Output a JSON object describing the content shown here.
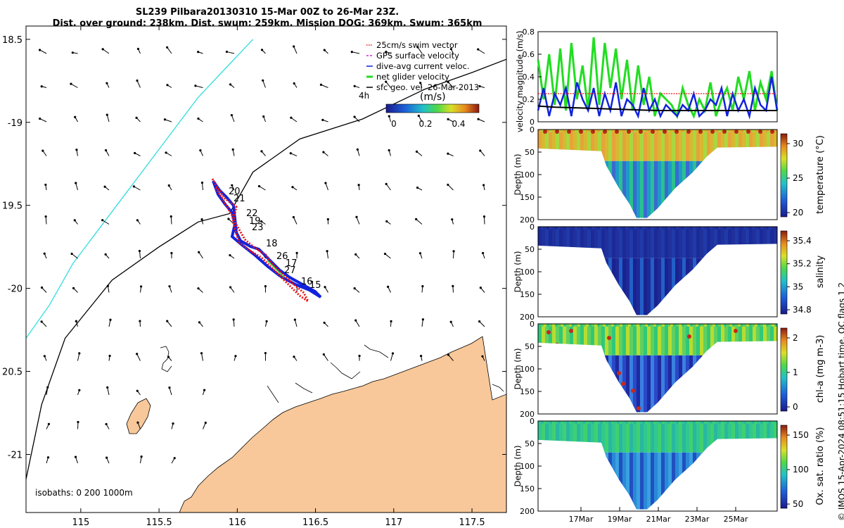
{
  "header": {
    "title_line1": "SL239 Pilbara20130310 15-Mar 00Z to 26-Mar 23Z.",
    "title_line2": "Dist. over ground: 238km. Dist. swum: 259km. Mission DOG: 369km. Swum: 365km"
  },
  "credit": "© IMOS 15-Apr-2024 08:51:15 Hobart time. QC flags 1  2",
  "colors": {
    "coast_cyan": "#33dddd",
    "land": "#f8c89a",
    "track_red": "#ee1111",
    "track_blue": "#1122dd",
    "net_green": "#22dd22",
    "gps_magenta": "#dd22dd"
  },
  "map": {
    "legend": [
      {
        "label": "25cm/s swim vector",
        "color": "#ee1111",
        "style": "dotted"
      },
      {
        "label": "GPS surface velocity",
        "color": "#dd22dd",
        "style": "dashed"
      },
      {
        "label": "dive-avg current veloc.",
        "color": "#1122dd",
        "style": "solid"
      },
      {
        "label": "net glider velocity",
        "color": "#22dd22",
        "style": "thick"
      },
      {
        "label": "sfc geo. vel. 26-Mar-2013",
        "color": "#000000",
        "style": "solid"
      }
    ],
    "interval_label": "4h",
    "colorbar_unit": "(m/s)",
    "colorbar_ticks": [
      "0",
      "0.2",
      "0.4"
    ],
    "isobaths_label": "isobaths: 0   200  1000m",
    "track_day_labels": [
      "20",
      "21",
      "22",
      "19",
      "23",
      "18",
      "26",
      "17",
      "27",
      "15",
      "16"
    ]
  },
  "chart_data": [
    {
      "type": "scatter",
      "title": "SL239 Pilbara20130310 15-Mar 00Z to 26-Mar 23Z.",
      "xlabel": "",
      "ylabel": "",
      "xlim": [
        114.65,
        117.72
      ],
      "ylim": [
        -21.35,
        -18.42
      ],
      "xticks": [
        115,
        115.5,
        116,
        116.5,
        117,
        117.5
      ],
      "xtick_labels": [
        "115",
        "115.5",
        "116",
        "116.5",
        "117",
        "117.5"
      ],
      "yticks": [
        -18.5,
        -19,
        -19.5,
        -20,
        -20.5,
        -21
      ],
      "ytick_labels": [
        "18.5",
        "-19",
        "19.5",
        "-20",
        "20.5",
        "-21"
      ],
      "glider_track": {
        "x": [
          115.87,
          115.95,
          116.0,
          116.05,
          116.12,
          116.2,
          116.28,
          116.35,
          116.42,
          116.52
        ],
        "y": [
          -19.37,
          -19.46,
          -19.55,
          -19.66,
          -19.76,
          -19.83,
          -19.9,
          -19.96,
          -20.03,
          -20.06
        ]
      },
      "isobath_200m": {
        "x": [
          114.65,
          114.75,
          114.9,
          115.2,
          115.5,
          115.75,
          115.95,
          116.1,
          116.4,
          116.8,
          117.2,
          117.5,
          117.72
        ],
        "y": [
          -21.15,
          -20.7,
          -20.3,
          -19.95,
          -19.75,
          -19.6,
          -19.55,
          -19.3,
          -19.1,
          -18.98,
          -18.8,
          -18.7,
          -18.62
        ]
      },
      "isobath_1000m": {
        "x": [
          114.65,
          114.8,
          114.95,
          115.15,
          115.35,
          115.55,
          115.75,
          115.9,
          116.1
        ],
        "y": [
          -20.3,
          -20.1,
          -19.85,
          -19.6,
          -19.35,
          -19.1,
          -18.85,
          -18.7,
          -18.5
        ]
      }
    },
    {
      "type": "line",
      "xlabel": "",
      "ylabel": "velocity magnitude (m/s)",
      "ylim": [
        0,
        0.8
      ],
      "yticks": [
        0,
        0.2,
        0.4,
        0.6,
        0.8
      ],
      "series": [
        {
          "color": "#22dd22",
          "values": [
            0.55,
            0.2,
            0.6,
            0.15,
            0.65,
            0.1,
            0.7,
            0.2,
            0.5,
            0.1,
            0.75,
            0.15,
            0.7,
            0.3,
            0.65,
            0.2,
            0.55,
            0.1,
            0.5,
            0.15,
            0.4,
            0.05,
            0.25,
            0.2,
            0.15,
            0.05,
            0.3,
            0.15,
            0.05,
            0.2,
            0.1,
            0.35,
            0.05,
            0.2,
            0.3,
            0.1,
            0.4,
            0.2,
            0.45,
            0.1,
            0.35,
            0.2,
            0.45,
            0.1
          ]
        },
        {
          "color": "#1122dd",
          "values": [
            0.1,
            0.3,
            0.05,
            0.25,
            0.15,
            0.3,
            0.05,
            0.35,
            0.2,
            0.1,
            0.3,
            0.05,
            0.25,
            0.1,
            0.35,
            0.05,
            0.2,
            0.15,
            0.05,
            0.3,
            0.1,
            0.2,
            0.05,
            0.15,
            0.1,
            0.05,
            0.15,
            0.1,
            0.25,
            0.05,
            0.1,
            0.2,
            0.15,
            0.3,
            0.05,
            0.25,
            0.1,
            0.2,
            0.05,
            0.3,
            0.15,
            0.1,
            0.4,
            0.1
          ]
        },
        {
          "color": "#ee1111",
          "values": [
            0.25,
            0.25,
            0.25,
            0.25,
            0.25,
            0.25,
            0.25,
            0.25,
            0.25,
            0.25,
            0.25,
            0.25,
            0.25,
            0.25,
            0.25,
            0.25,
            0.25,
            0.25,
            0.25,
            0.25,
            0.25,
            0.25,
            0.25,
            0.25,
            0.25,
            0.25,
            0.25,
            0.25,
            0.25,
            0.25,
            0.25,
            0.25,
            0.25,
            0.25,
            0.25,
            0.25,
            0.25,
            0.25,
            0.25,
            0.25,
            0.25,
            0.25,
            0.25,
            0.25
          ]
        },
        {
          "color": "#000000",
          "values": [
            0.14,
            0.13,
            0.125,
            0.12,
            0.115,
            0.11,
            0.105,
            0.1,
            0.1,
            0.1,
            0.1,
            0.1,
            0.1,
            0.1,
            0.1
          ]
        }
      ]
    },
    {
      "type": "heatmap",
      "xlabel": "",
      "ylabel": "Depth (m)",
      "ylim": [
        0,
        200
      ],
      "yticks": [
        0,
        50,
        100,
        150,
        200
      ],
      "colorbar_label": "temperature (°C)",
      "colorbar_ticks": [
        "30",
        "25",
        "20"
      ]
    },
    {
      "type": "heatmap",
      "xlabel": "",
      "ylabel": "Depth (m)",
      "ylim": [
        0,
        200
      ],
      "yticks": [
        0,
        50,
        100,
        150,
        200
      ],
      "colorbar_label": "salinity",
      "colorbar_ticks": [
        "35.4",
        "35.2",
        "35",
        "34.8"
      ]
    },
    {
      "type": "heatmap",
      "xlabel": "",
      "ylabel": "Depth (m)",
      "ylim": [
        0,
        200
      ],
      "yticks": [
        0,
        50,
        100,
        150,
        200
      ],
      "colorbar_label": "chl-a (mg m-3)",
      "colorbar_ticks": [
        "2",
        "1",
        "0"
      ]
    },
    {
      "type": "heatmap",
      "xlabel": "",
      "ylabel": "Depth (m)",
      "ylim": [
        0,
        200
      ],
      "yticks": [
        0,
        50,
        100,
        150,
        200
      ],
      "colorbar_label": "Ox. sat. ratio (%)",
      "colorbar_ticks": [
        "150",
        "100",
        "50"
      ],
      "xtick_labels": [
        "17Mar",
        "19Mar",
        "21Mar",
        "23Mar",
        "25Mar"
      ]
    }
  ]
}
